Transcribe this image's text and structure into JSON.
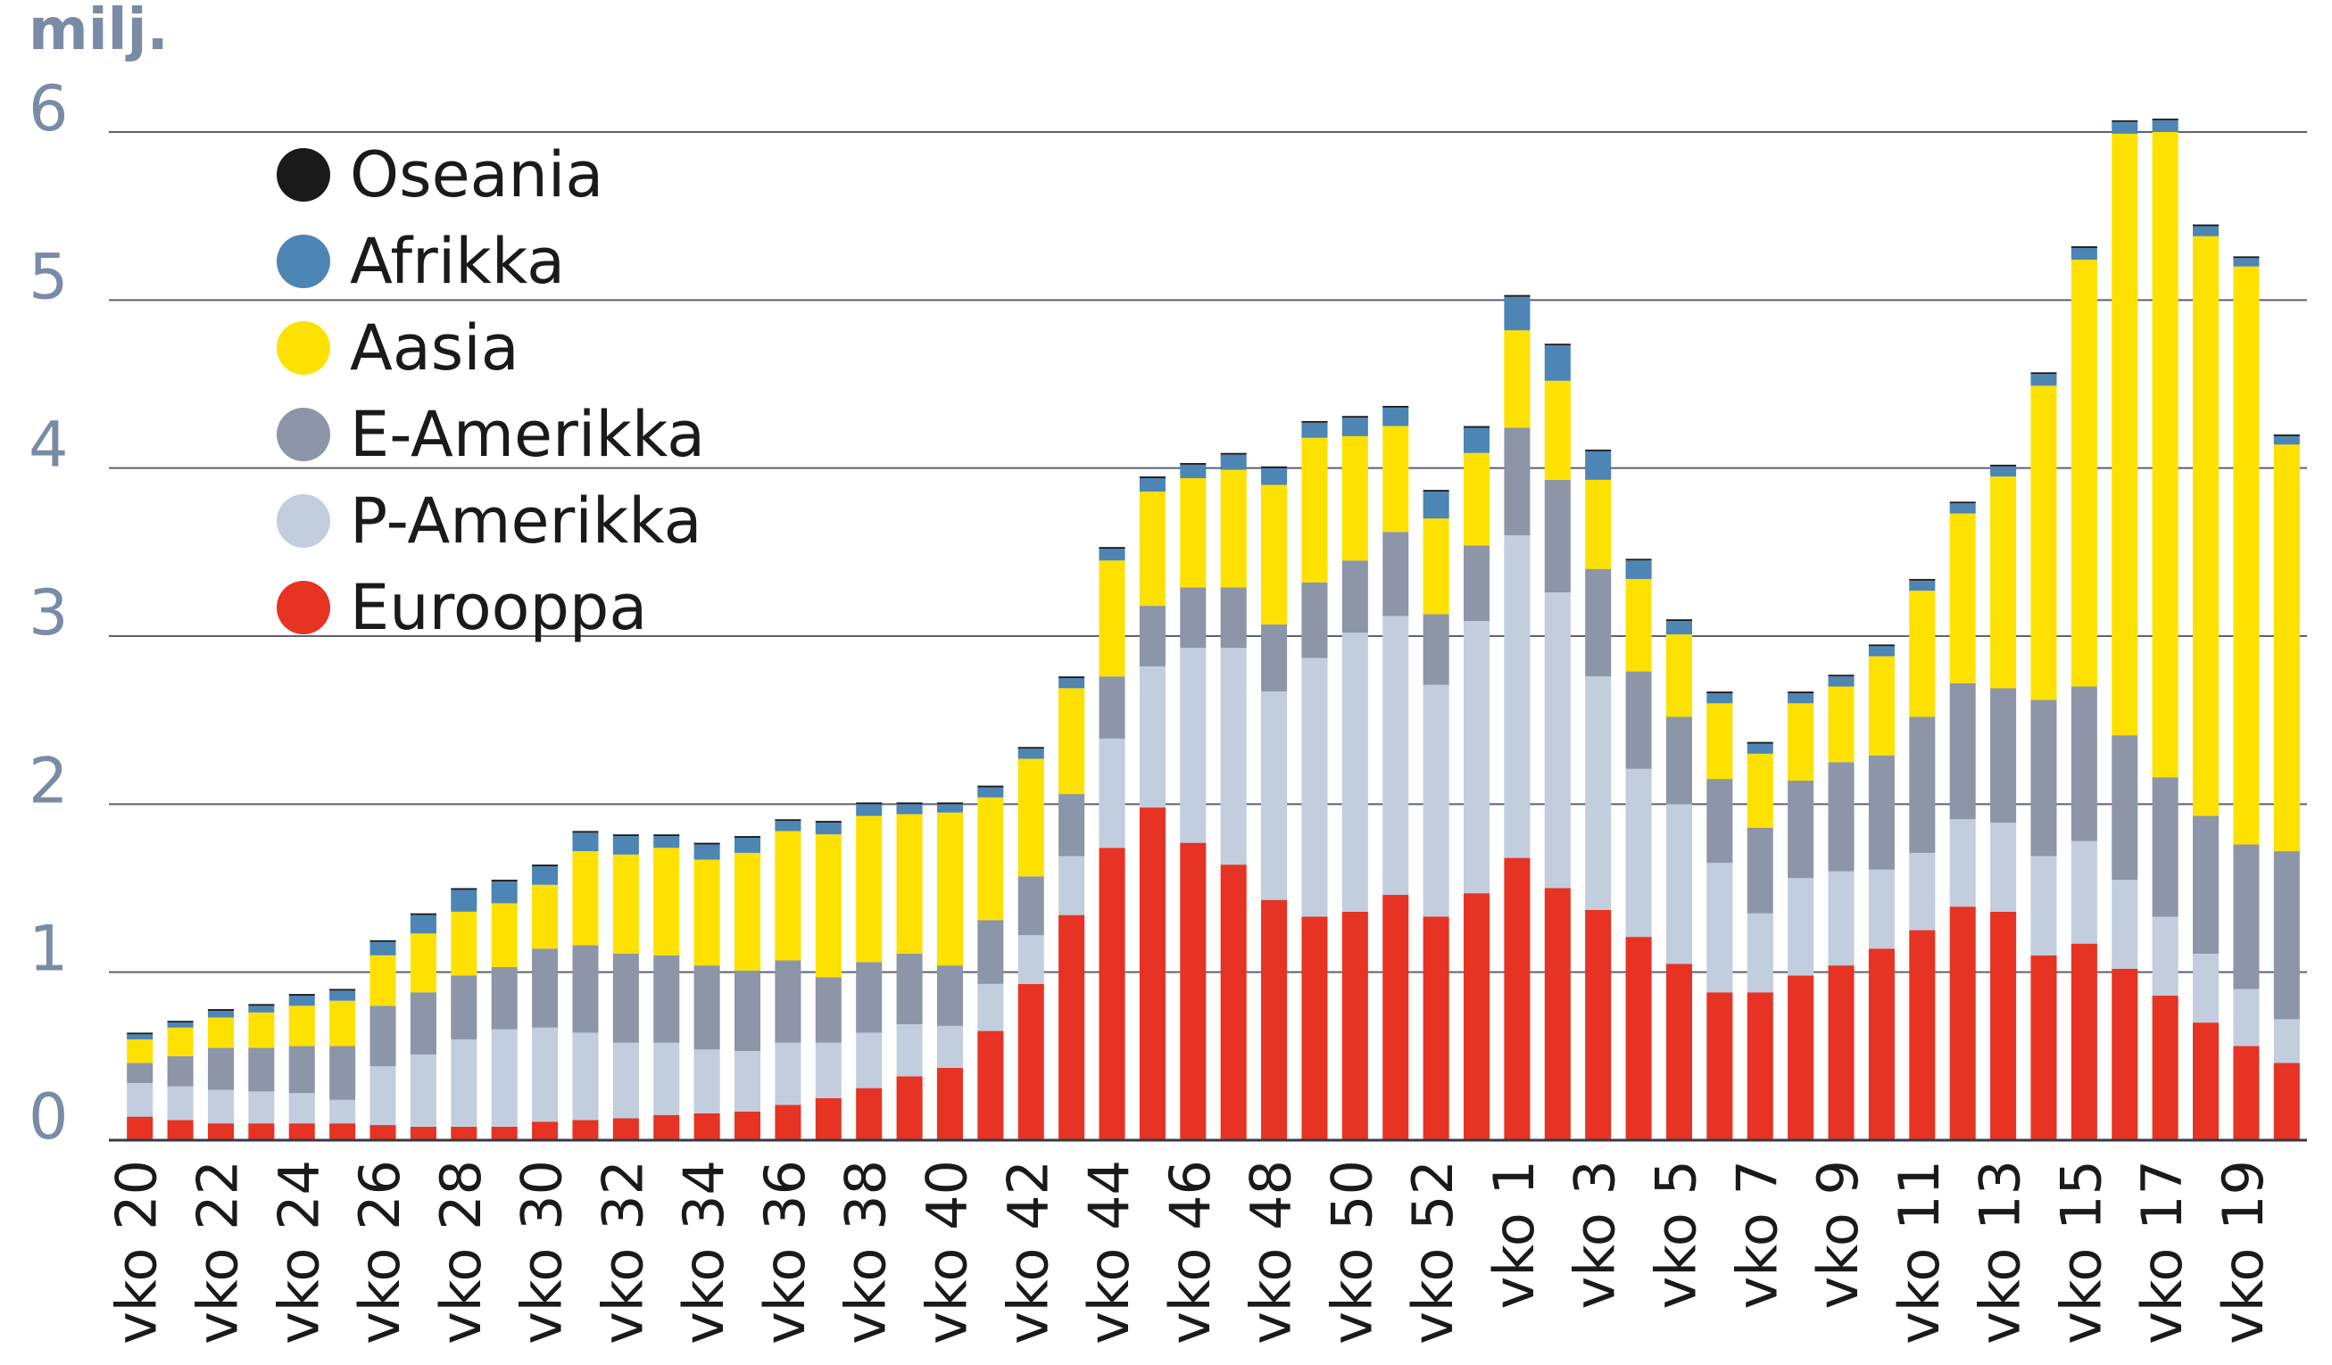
{
  "chart_data": {
    "type": "bar",
    "stacked": true,
    "ylabel": "milj.",
    "ylim": [
      0,
      6
    ],
    "yticks": [
      "0",
      "1",
      "2",
      "3",
      "4",
      "5",
      "6"
    ],
    "grid": true,
    "legend_position": "top-left",
    "categories": [
      "vko 20",
      "vko 21",
      "vko 22",
      "vko 23",
      "vko 24",
      "vko 25",
      "vko 26",
      "vko 27",
      "vko 28",
      "vko 29",
      "vko 30",
      "vko 31",
      "vko 32",
      "vko 33",
      "vko 34",
      "vko 35",
      "vko 36",
      "vko 37",
      "vko 38",
      "vko 39",
      "vko 40",
      "vko 41",
      "vko 42",
      "vko 43",
      "vko 44",
      "vko 45",
      "vko 46",
      "vko 47",
      "vko 48",
      "vko 49",
      "vko 50",
      "vko 51",
      "vko 52",
      "vko 53",
      "vko 1",
      "vko 2",
      "vko 3",
      "vko 4",
      "vko 5",
      "vko 6",
      "vko 7",
      "vko 8",
      "vko 9",
      "vko 10",
      "vko 11",
      "vko 12",
      "vko 13",
      "vko 14",
      "vko 15",
      "vko 16",
      "vko 17",
      "vko 18",
      "vko 19",
      "vko 20"
    ],
    "tick_labels": [
      "vko 20",
      "vko 22",
      "vko 24",
      "vko 26",
      "vko 28",
      "vko 30",
      "vko 32",
      "vko 34",
      "vko 36",
      "vko 38",
      "vko 40",
      "vko 42",
      "vko 44",
      "vko 46",
      "vko 48",
      "vko 50",
      "vko 52",
      "vko 1",
      "vko 3",
      "vko 5",
      "vko 7",
      "vko 9",
      "vko 11",
      "vko 13",
      "vko 15",
      "vko 17",
      "vko 19"
    ],
    "tick_every": 2,
    "series": [
      {
        "name": "Eurooppa",
        "color": "#e63323",
        "values": [
          0.14,
          0.12,
          0.1,
          0.1,
          0.1,
          0.1,
          0.09,
          0.08,
          0.08,
          0.08,
          0.11,
          0.12,
          0.13,
          0.15,
          0.16,
          0.17,
          0.21,
          0.25,
          0.31,
          0.38,
          0.43,
          0.65,
          0.93,
          1.34,
          1.74,
          1.98,
          1.77,
          1.64,
          1.43,
          1.33,
          1.36,
          1.46,
          1.33,
          1.47,
          1.68,
          1.5,
          1.37,
          1.21,
          1.05,
          0.88,
          0.88,
          0.98,
          1.04,
          1.14,
          1.25,
          1.39,
          1.36,
          1.1,
          1.17,
          1.02,
          0.86,
          0.7,
          0.56,
          0.46
        ]
      },
      {
        "name": "P-Amerikka",
        "color": "#c2cede",
        "values": [
          0.2,
          0.2,
          0.2,
          0.19,
          0.18,
          0.14,
          0.35,
          0.43,
          0.52,
          0.58,
          0.56,
          0.52,
          0.45,
          0.43,
          0.38,
          0.36,
          0.37,
          0.33,
          0.33,
          0.31,
          0.25,
          0.28,
          0.29,
          0.35,
          0.65,
          0.84,
          1.16,
          1.29,
          1.24,
          1.54,
          1.66,
          1.66,
          1.38,
          1.62,
          1.92,
          1.76,
          1.39,
          1.0,
          0.95,
          0.77,
          0.47,
          0.58,
          0.56,
          0.47,
          0.46,
          0.52,
          0.53,
          0.59,
          0.61,
          0.53,
          0.47,
          0.41,
          0.34,
          0.26
        ]
      },
      {
        "name": "E-Amerikka",
        "color": "#8c96a8",
        "values": [
          0.12,
          0.18,
          0.25,
          0.26,
          0.28,
          0.32,
          0.36,
          0.37,
          0.38,
          0.37,
          0.47,
          0.52,
          0.53,
          0.52,
          0.5,
          0.48,
          0.49,
          0.39,
          0.42,
          0.42,
          0.36,
          0.38,
          0.35,
          0.37,
          0.37,
          0.36,
          0.36,
          0.36,
          0.4,
          0.45,
          0.43,
          0.5,
          0.42,
          0.45,
          0.64,
          0.67,
          0.64,
          0.58,
          0.52,
          0.5,
          0.51,
          0.58,
          0.65,
          0.68,
          0.81,
          0.81,
          0.8,
          0.93,
          0.92,
          0.86,
          0.83,
          0.82,
          0.86,
          1.0
        ]
      },
      {
        "name": "Aasia",
        "color": "#ffe100",
        "values": [
          0.14,
          0.17,
          0.18,
          0.21,
          0.24,
          0.27,
          0.3,
          0.35,
          0.38,
          0.38,
          0.38,
          0.56,
          0.59,
          0.64,
          0.63,
          0.7,
          0.77,
          0.85,
          0.87,
          0.83,
          0.91,
          0.73,
          0.7,
          0.63,
          0.69,
          0.68,
          0.65,
          0.7,
          0.83,
          0.86,
          0.74,
          0.63,
          0.57,
          0.55,
          0.58,
          0.59,
          0.53,
          0.55,
          0.49,
          0.45,
          0.44,
          0.46,
          0.45,
          0.59,
          0.75,
          1.01,
          1.26,
          1.87,
          2.54,
          3.58,
          3.84,
          3.45,
          3.44,
          2.42
        ]
      },
      {
        "name": "Afrikka",
        "color": "#4d85b5",
        "values": [
          0.03,
          0.03,
          0.04,
          0.04,
          0.06,
          0.06,
          0.08,
          0.11,
          0.13,
          0.13,
          0.11,
          0.11,
          0.11,
          0.07,
          0.09,
          0.09,
          0.06,
          0.07,
          0.07,
          0.06,
          0.05,
          0.06,
          0.06,
          0.06,
          0.07,
          0.08,
          0.08,
          0.09,
          0.1,
          0.09,
          0.11,
          0.11,
          0.16,
          0.15,
          0.2,
          0.21,
          0.17,
          0.11,
          0.08,
          0.06,
          0.06,
          0.06,
          0.06,
          0.06,
          0.06,
          0.06,
          0.06,
          0.07,
          0.07,
          0.07,
          0.07,
          0.06,
          0.05,
          0.05
        ]
      },
      {
        "name": "Oseania",
        "color": "#1a1a1a",
        "values": [
          0.01,
          0.01,
          0.01,
          0.01,
          0.01,
          0.01,
          0.01,
          0.01,
          0.01,
          0.01,
          0.01,
          0.01,
          0.01,
          0.01,
          0.01,
          0.01,
          0.01,
          0.01,
          0.01,
          0.01,
          0.01,
          0.01,
          0.01,
          0.01,
          0.01,
          0.01,
          0.01,
          0.01,
          0.01,
          0.01,
          0.01,
          0.01,
          0.01,
          0.01,
          0.01,
          0.01,
          0.01,
          0.01,
          0.01,
          0.01,
          0.01,
          0.01,
          0.01,
          0.01,
          0.01,
          0.01,
          0.01,
          0.01,
          0.01,
          0.01,
          0.01,
          0.01,
          0.01,
          0.01
        ]
      }
    ],
    "legend_order": [
      "Oseania",
      "Afrikka",
      "Aasia",
      "E-Amerikka",
      "P-Amerikka",
      "Eurooppa"
    ]
  }
}
